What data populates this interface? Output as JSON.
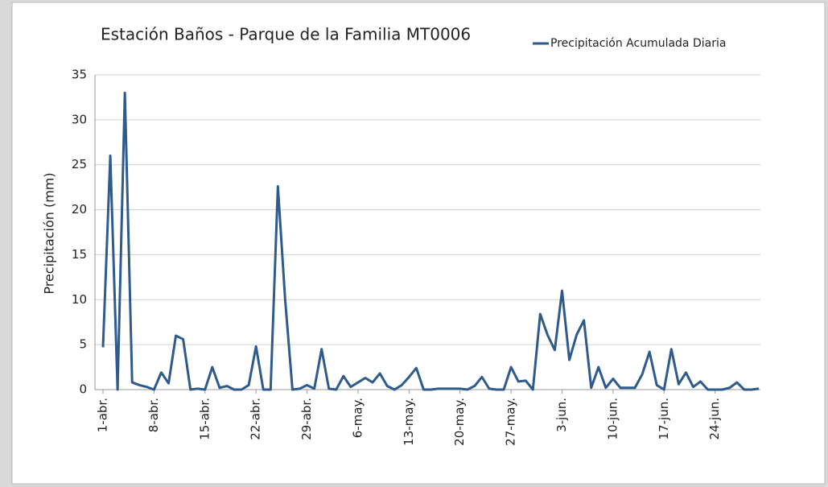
{
  "chart_data": {
    "type": "line",
    "title": "Estación Baños - Parque de la Familia MT0006",
    "y_label": "Precipitación (mm)",
    "categories": [
      "1-abr.",
      null,
      null,
      null,
      null,
      null,
      null,
      "8-abr.",
      null,
      null,
      null,
      null,
      null,
      null,
      "15-abr.",
      null,
      null,
      null,
      null,
      null,
      null,
      "22-abr.",
      null,
      null,
      null,
      null,
      null,
      null,
      "29-abr.",
      null,
      null,
      null,
      null,
      null,
      null,
      "6-may.",
      null,
      null,
      null,
      null,
      null,
      null,
      "13-may.",
      null,
      null,
      null,
      null,
      null,
      null,
      "20-may.",
      null,
      null,
      null,
      null,
      null,
      null,
      "27-may.",
      null,
      null,
      null,
      null,
      null,
      null,
      "3-jun.",
      null,
      null,
      null,
      null,
      null,
      null,
      "10-jun.",
      null,
      null,
      null,
      null,
      null,
      null,
      "17-jun.",
      null,
      null,
      null,
      null,
      null,
      null,
      "24-jun.",
      null,
      null,
      null,
      null,
      null,
      null
    ],
    "series": [
      {
        "name": "Precipitación Acumulada Diaria",
        "color": "#2e5a8c",
        "values": [
          4.7,
          26,
          0,
          33,
          0.8,
          0.5,
          0.3,
          0,
          1.9,
          0.7,
          6,
          5.6,
          0,
          0.1,
          0,
          2.5,
          0.2,
          0.4,
          0,
          0,
          0.5,
          4.8,
          0,
          0,
          22.6,
          10,
          0,
          0.1,
          0.5,
          0.1,
          4.5,
          0.1,
          0,
          1.5,
          0.3,
          0.8,
          1.3,
          0.8,
          1.8,
          0.4,
          0,
          0.5,
          1.4,
          2.4,
          0,
          0,
          0.1,
          0.1,
          0.1,
          0.1,
          0,
          0.4,
          1.4,
          0.1,
          0,
          0,
          2.5,
          0.9,
          1,
          0,
          8.4,
          6.1,
          4.4,
          11,
          3.3,
          6.1,
          7.7,
          0.2,
          2.5,
          0.2,
          1.2,
          0.2,
          0.2,
          0.2,
          1.7,
          4.2,
          0.5,
          0,
          4.5,
          0.6,
          1.9,
          0.3,
          0.9,
          0,
          0,
          0,
          0.2,
          0.8,
          0,
          0,
          0.1
        ]
      }
    ],
    "ylim": [
      0,
      35
    ],
    "yticks": [
      0,
      5,
      10,
      15,
      20,
      25,
      30,
      35
    ],
    "grid": true,
    "legend": "top-right"
  }
}
